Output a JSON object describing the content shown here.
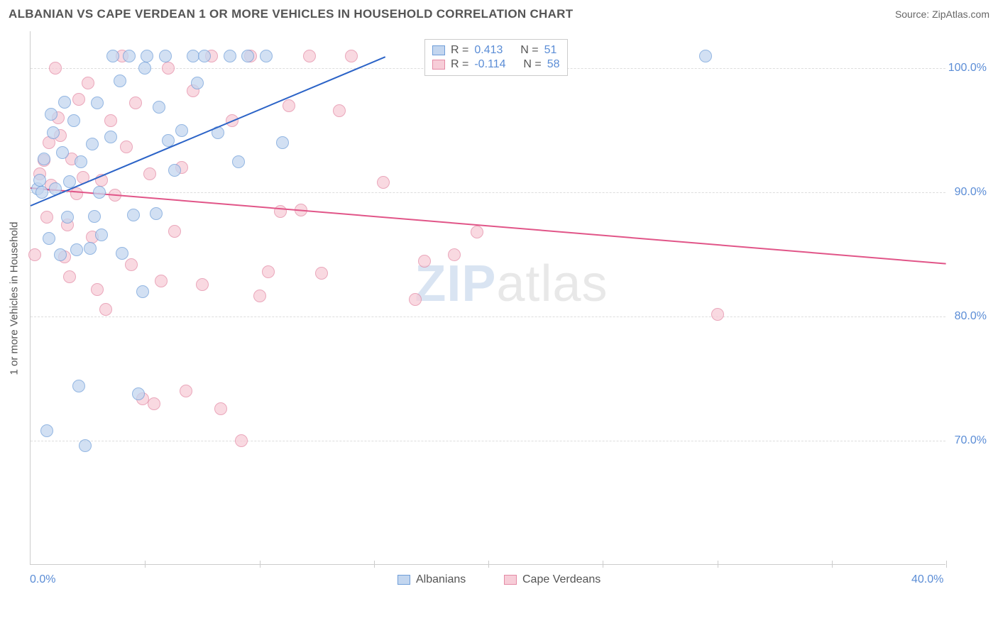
{
  "header": {
    "title": "ALBANIAN VS CAPE VERDEAN 1 OR MORE VEHICLES IN HOUSEHOLD CORRELATION CHART",
    "source_label": "Source:",
    "source_value": "ZipAtlas.com"
  },
  "chart": {
    "type": "scatter",
    "ylabel": "1 or more Vehicles in Household",
    "xlim": [
      0,
      40
    ],
    "ylim": [
      60,
      103
    ],
    "background_color": "#ffffff",
    "grid_color": "#dddddd",
    "axis_color": "#cccccc",
    "tick_label_color": "#5b8dd6",
    "y_ticks": [
      70.0,
      80.0,
      90.0,
      100.0
    ],
    "y_tick_labels": [
      "70.0%",
      "80.0%",
      "90.0%",
      "100.0%"
    ],
    "x_ticks": [
      0,
      10,
      20,
      30,
      40
    ],
    "x_tick_labels": [
      "0.0%",
      "",
      "",
      "",
      "40.0%"
    ],
    "x_internal_ticks": [
      5,
      10,
      15,
      20,
      25,
      30,
      35,
      40
    ],
    "series": {
      "albanians": {
        "label": "Albanians",
        "fill_color": "#c3d6ef",
        "stroke_color": "#6f9ed9",
        "marker_radius": 9,
        "marker_opacity": 0.75,
        "r_value": "0.413",
        "n_value": "51",
        "regression": {
          "x1": 0,
          "y1": 89.0,
          "x2": 15.5,
          "y2": 101.0,
          "color": "#2b63c7",
          "width": 2
        },
        "points": [
          {
            "x": 0.3,
            "y": 90.3
          },
          {
            "x": 0.4,
            "y": 91.0
          },
          {
            "x": 0.5,
            "y": 90.0
          },
          {
            "x": 0.6,
            "y": 92.7
          },
          {
            "x": 0.7,
            "y": 70.8
          },
          {
            "x": 0.8,
            "y": 86.3
          },
          {
            "x": 0.9,
            "y": 96.3
          },
          {
            "x": 1.0,
            "y": 94.8
          },
          {
            "x": 1.1,
            "y": 90.3
          },
          {
            "x": 1.3,
            "y": 85.0
          },
          {
            "x": 1.4,
            "y": 93.2
          },
          {
            "x": 1.5,
            "y": 97.3
          },
          {
            "x": 1.6,
            "y": 88.0
          },
          {
            "x": 1.7,
            "y": 90.9
          },
          {
            "x": 1.9,
            "y": 95.8
          },
          {
            "x": 2.0,
            "y": 85.4
          },
          {
            "x": 2.1,
            "y": 74.4
          },
          {
            "x": 2.2,
            "y": 92.5
          },
          {
            "x": 2.4,
            "y": 69.6
          },
          {
            "x": 2.6,
            "y": 85.5
          },
          {
            "x": 2.7,
            "y": 93.9
          },
          {
            "x": 2.8,
            "y": 88.1
          },
          {
            "x": 2.9,
            "y": 97.2
          },
          {
            "x": 3.0,
            "y": 90.0
          },
          {
            "x": 3.1,
            "y": 86.6
          },
          {
            "x": 3.5,
            "y": 94.5
          },
          {
            "x": 3.6,
            "y": 101.0
          },
          {
            "x": 3.9,
            "y": 99.0
          },
          {
            "x": 4.0,
            "y": 85.1
          },
          {
            "x": 4.3,
            "y": 101.0
          },
          {
            "x": 4.5,
            "y": 88.2
          },
          {
            "x": 4.7,
            "y": 73.8
          },
          {
            "x": 4.9,
            "y": 82.0
          },
          {
            "x": 5.0,
            "y": 100.0
          },
          {
            "x": 5.1,
            "y": 101.0
          },
          {
            "x": 5.5,
            "y": 88.3
          },
          {
            "x": 5.6,
            "y": 96.9
          },
          {
            "x": 5.9,
            "y": 101.0
          },
          {
            "x": 6.0,
            "y": 94.2
          },
          {
            "x": 6.3,
            "y": 91.8
          },
          {
            "x": 6.6,
            "y": 95.0
          },
          {
            "x": 7.1,
            "y": 101.0
          },
          {
            "x": 7.3,
            "y": 98.8
          },
          {
            "x": 7.6,
            "y": 101.0
          },
          {
            "x": 8.2,
            "y": 94.8
          },
          {
            "x": 8.7,
            "y": 101.0
          },
          {
            "x": 9.1,
            "y": 92.5
          },
          {
            "x": 9.5,
            "y": 101.0
          },
          {
            "x": 10.3,
            "y": 101.0
          },
          {
            "x": 11.0,
            "y": 94.0
          },
          {
            "x": 29.5,
            "y": 101.0
          }
        ]
      },
      "cape_verdeans": {
        "label": "Cape Verdeans",
        "fill_color": "#f7cdd8",
        "stroke_color": "#e48aa5",
        "marker_radius": 9,
        "marker_opacity": 0.75,
        "r_value": "-0.114",
        "n_value": "58",
        "regression": {
          "x1": 0,
          "y1": 90.4,
          "x2": 40,
          "y2": 84.3,
          "color": "#e15588",
          "width": 2
        },
        "points": [
          {
            "x": 0.2,
            "y": 85.0
          },
          {
            "x": 0.4,
            "y": 91.5
          },
          {
            "x": 0.6,
            "y": 92.6
          },
          {
            "x": 0.7,
            "y": 88.0
          },
          {
            "x": 0.8,
            "y": 94.0
          },
          {
            "x": 0.9,
            "y": 90.6
          },
          {
            "x": 1.1,
            "y": 100.0
          },
          {
            "x": 1.2,
            "y": 96.0
          },
          {
            "x": 1.3,
            "y": 94.6
          },
          {
            "x": 1.5,
            "y": 84.8
          },
          {
            "x": 1.6,
            "y": 87.4
          },
          {
            "x": 1.7,
            "y": 83.2
          },
          {
            "x": 1.8,
            "y": 92.7
          },
          {
            "x": 2.0,
            "y": 89.9
          },
          {
            "x": 2.1,
            "y": 97.5
          },
          {
            "x": 2.3,
            "y": 91.2
          },
          {
            "x": 2.5,
            "y": 98.8
          },
          {
            "x": 2.7,
            "y": 86.4
          },
          {
            "x": 2.9,
            "y": 82.2
          },
          {
            "x": 3.1,
            "y": 91.0
          },
          {
            "x": 3.3,
            "y": 80.6
          },
          {
            "x": 3.5,
            "y": 95.8
          },
          {
            "x": 3.7,
            "y": 89.8
          },
          {
            "x": 4.0,
            "y": 101.0
          },
          {
            "x": 4.2,
            "y": 93.7
          },
          {
            "x": 4.4,
            "y": 84.2
          },
          {
            "x": 4.6,
            "y": 97.2
          },
          {
            "x": 4.9,
            "y": 73.4
          },
          {
            "x": 5.2,
            "y": 91.5
          },
          {
            "x": 5.4,
            "y": 73.0
          },
          {
            "x": 5.7,
            "y": 82.9
          },
          {
            "x": 6.0,
            "y": 100.0
          },
          {
            "x": 6.3,
            "y": 86.9
          },
          {
            "x": 6.6,
            "y": 92.0
          },
          {
            "x": 6.8,
            "y": 74.0
          },
          {
            "x": 7.1,
            "y": 98.2
          },
          {
            "x": 7.5,
            "y": 82.6
          },
          {
            "x": 7.9,
            "y": 101.0
          },
          {
            "x": 8.3,
            "y": 72.6
          },
          {
            "x": 8.8,
            "y": 95.8
          },
          {
            "x": 9.2,
            "y": 70.0
          },
          {
            "x": 9.6,
            "y": 101.0
          },
          {
            "x": 10.0,
            "y": 81.7
          },
          {
            "x": 10.4,
            "y": 83.6
          },
          {
            "x": 10.9,
            "y": 88.5
          },
          {
            "x": 11.3,
            "y": 97.0
          },
          {
            "x": 11.8,
            "y": 88.6
          },
          {
            "x": 12.2,
            "y": 101.0
          },
          {
            "x": 12.7,
            "y": 83.5
          },
          {
            "x": 13.5,
            "y": 96.6
          },
          {
            "x": 14.0,
            "y": 101.0
          },
          {
            "x": 15.4,
            "y": 90.8
          },
          {
            "x": 16.8,
            "y": 81.4
          },
          {
            "x": 17.2,
            "y": 84.5
          },
          {
            "x": 18.5,
            "y": 85.0
          },
          {
            "x": 19.5,
            "y": 86.8
          },
          {
            "x": 21.2,
            "y": 101.2
          },
          {
            "x": 30.0,
            "y": 80.2
          }
        ]
      }
    },
    "stats_legend": {
      "r_prefix": "R =",
      "n_prefix": "N ="
    },
    "bottom_legend": {
      "albanians": "Albanians",
      "cape_verdeans": "Cape Verdeans"
    },
    "watermark": {
      "zip": "ZIP",
      "atlas": "atlas"
    }
  }
}
